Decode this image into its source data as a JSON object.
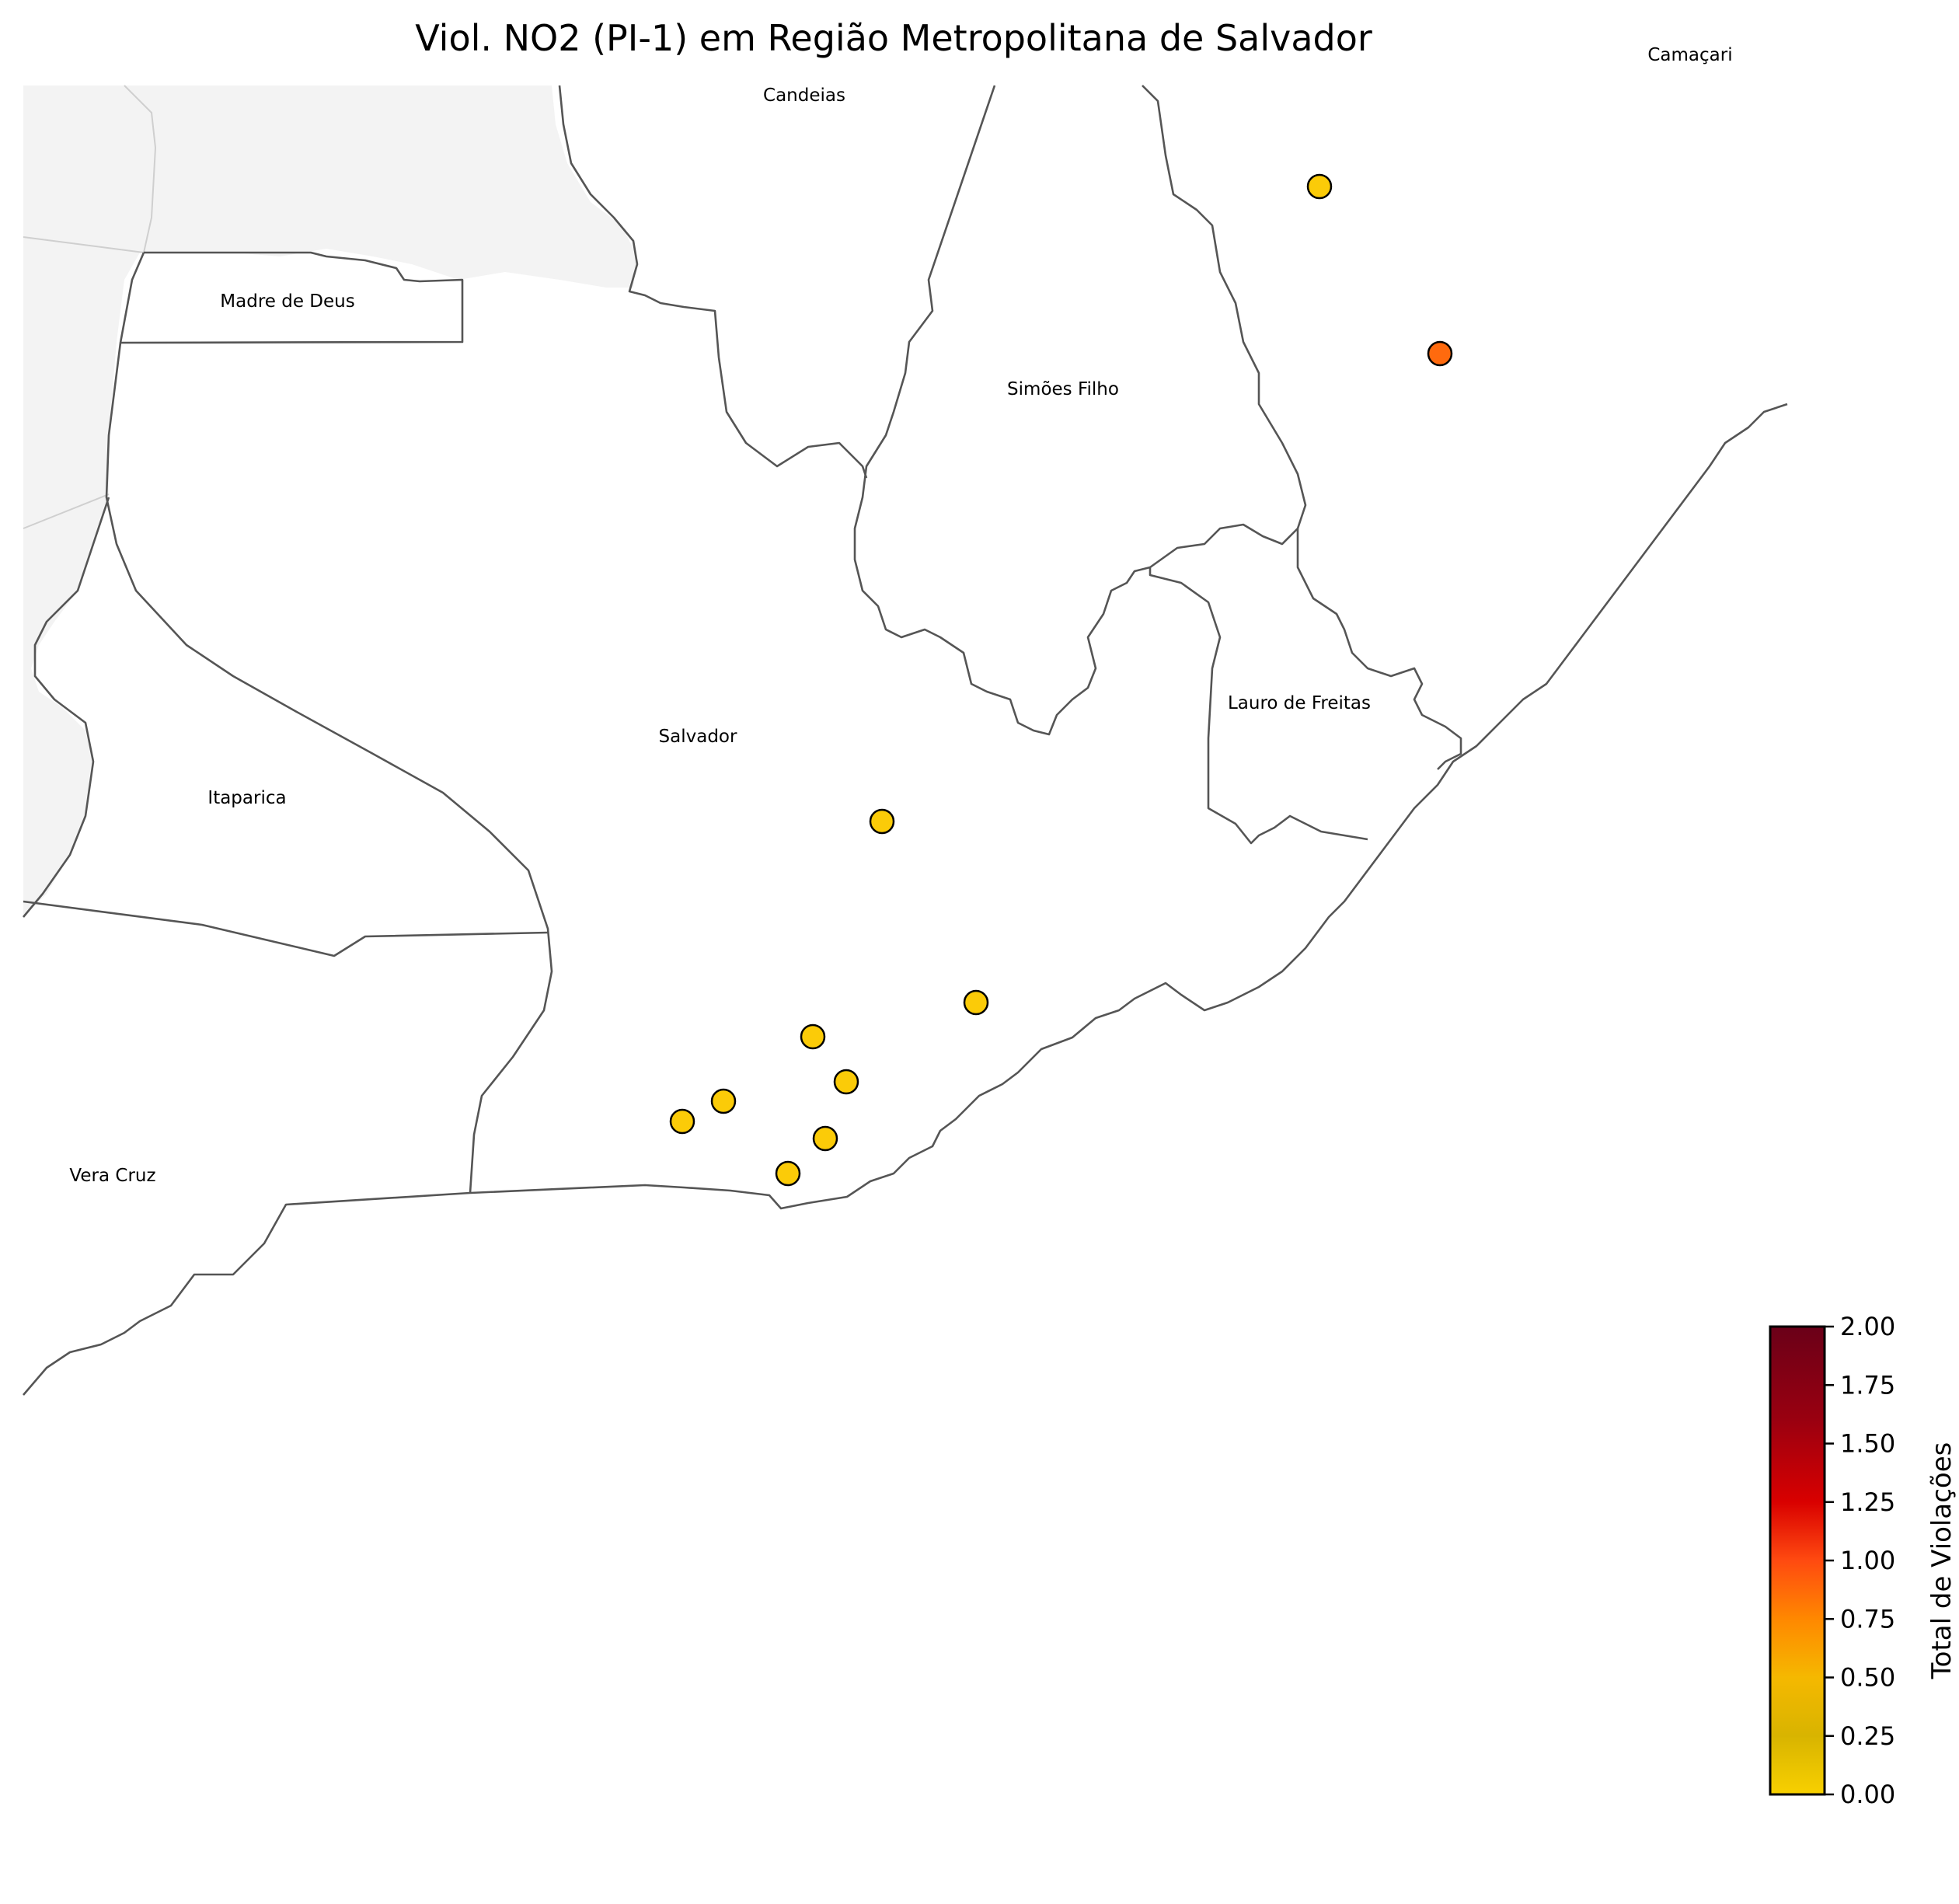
{
  "title": "Viol. NO2 (PI-1) em Região Metropolitana de Salvador",
  "municipalities": [
    {
      "name": "Camaçari"
    },
    {
      "name": "Candeias"
    },
    {
      "name": "Madre de Deus"
    },
    {
      "name": "Simões Filho"
    },
    {
      "name": "Salvador"
    },
    {
      "name": "Itaparica"
    },
    {
      "name": "Lauro de Freitas"
    },
    {
      "name": "Vera Cruz"
    }
  ],
  "colorbar": {
    "label": "Total de Violações",
    "min": 0,
    "max": 2,
    "ticks": [
      "0.00",
      "0.25",
      "0.50",
      "0.75",
      "1.00",
      "1.25",
      "1.50",
      "1.75",
      "2.00"
    ],
    "colors": [
      "#f8d000",
      "#d8b400",
      "#f5b800",
      "#ff8800",
      "#ff4a10",
      "#d90000",
      "#9a0010",
      "#6a0018"
    ]
  },
  "stations": [
    {
      "violations": 0,
      "color": "#fbcb08"
    },
    {
      "violations": 1,
      "color": "#ff6a0e"
    },
    {
      "violations": 0,
      "color": "#fbcb08"
    },
    {
      "violations": 0,
      "color": "#fbcb08"
    },
    {
      "violations": 0,
      "color": "#fbcb08"
    },
    {
      "violations": 0,
      "color": "#fbcb08"
    },
    {
      "violations": 0,
      "color": "#fbcb08"
    },
    {
      "violations": 0,
      "color": "#fbcb08"
    },
    {
      "violations": 0,
      "color": "#fbcb08"
    },
    {
      "violations": 0,
      "color": "#fbcb08"
    }
  ],
  "colors": {
    "land_outside": "#f3f3f3",
    "border": "#555555",
    "marker_edge": "#000000"
  }
}
